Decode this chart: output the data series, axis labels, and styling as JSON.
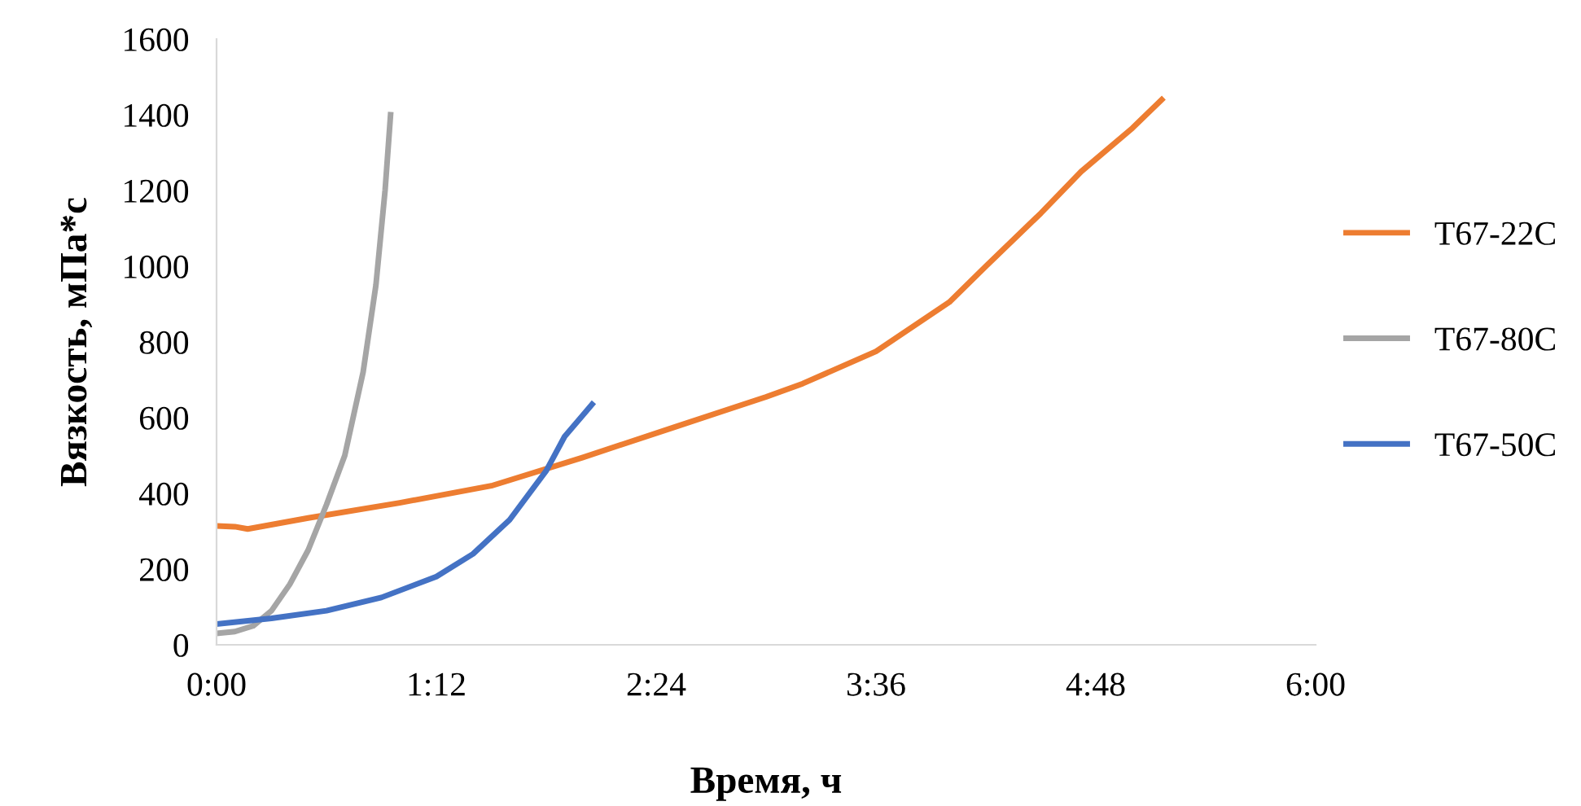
{
  "chart_data": {
    "type": "line",
    "xlabel": "Время, ч",
    "ylabel": "Вязкость, мПа*с",
    "xlim": [
      0,
      6
    ],
    "xticks": [
      {
        "value": 0,
        "label": "0:00"
      },
      {
        "value": 1.2,
        "label": "1:12"
      },
      {
        "value": 2.4,
        "label": "2:24"
      },
      {
        "value": 3.6,
        "label": "3:36"
      },
      {
        "value": 4.8,
        "label": "4:48"
      },
      {
        "value": 6,
        "label": "6:00"
      }
    ],
    "ylim": [
      0,
      1600
    ],
    "yticks": [
      0,
      200,
      400,
      600,
      800,
      1000,
      1200,
      1400,
      1600
    ],
    "grid": false,
    "legend": "right",
    "marker": "none",
    "line_style": "solid",
    "series": [
      {
        "name": "T67-22C",
        "color": "#ed7d31",
        "x": [
          0,
          0.1,
          0.17,
          0.5,
          1,
          1.5,
          2,
          2.5,
          3,
          3.2,
          3.6,
          4,
          4.2,
          4.5,
          4.72,
          5,
          5.16
        ],
        "values": [
          314,
          312,
          306,
          335,
          375,
          420,
          495,
          575,
          655,
          690,
          775,
          905,
          1000,
          1140,
          1250,
          1365,
          1440
        ]
      },
      {
        "name": "T67-80C",
        "color": "#a5a5a5",
        "x": [
          0,
          0.1,
          0.2,
          0.3,
          0.4,
          0.5,
          0.6,
          0.7,
          0.8,
          0.87,
          0.92,
          0.95
        ],
        "values": [
          30,
          35,
          50,
          90,
          160,
          250,
          370,
          500,
          720,
          950,
          1200,
          1400
        ]
      },
      {
        "name": "T67-50C",
        "color": "#4472c4",
        "x": [
          0,
          0.3,
          0.6,
          0.9,
          1.2,
          1.4,
          1.6,
          1.8,
          1.9,
          2.05
        ],
        "values": [
          55,
          70,
          90,
          125,
          180,
          240,
          330,
          460,
          550,
          635
        ]
      }
    ]
  }
}
